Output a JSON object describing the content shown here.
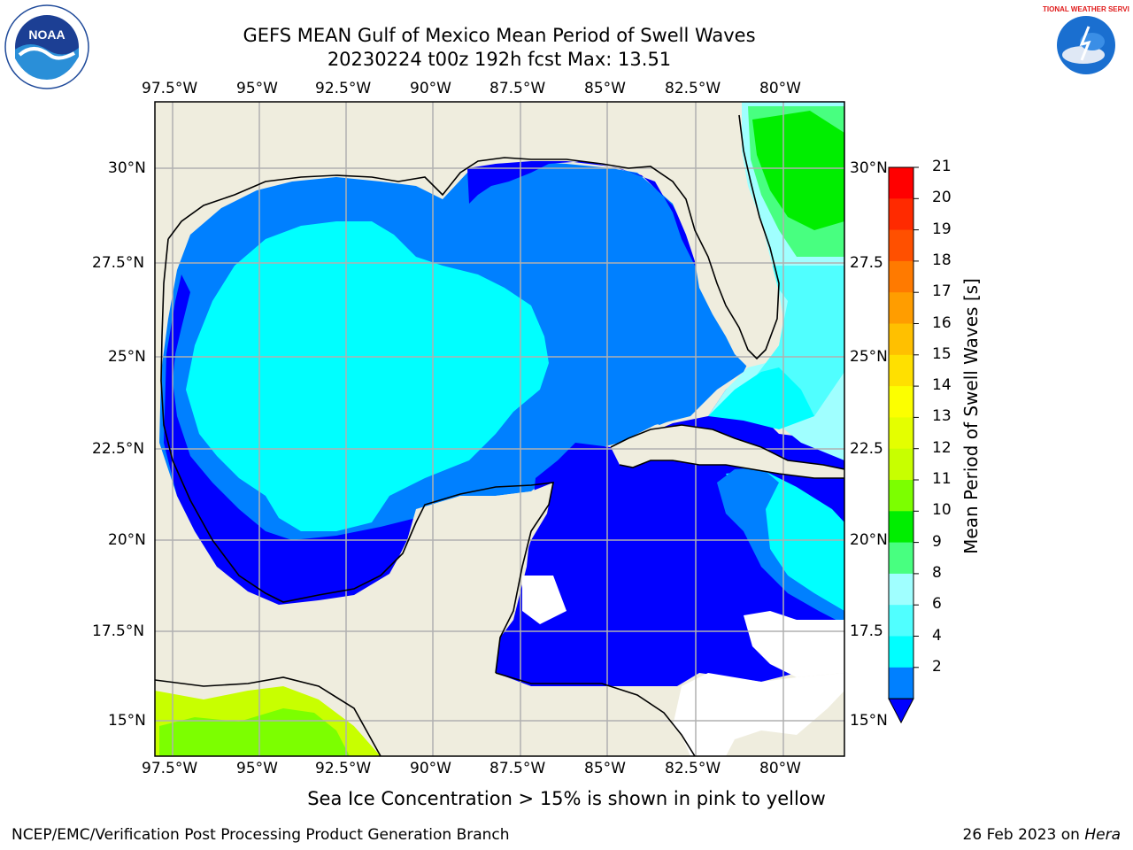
{
  "title": {
    "line1": "GEFS MEAN Gulf of Mexico Mean Period of Swell Waves",
    "line2": "20230224 t00z 192h fcst   Max: 13.51"
  },
  "map": {
    "lon_labels": [
      "97.5°W",
      "95°W",
      "92.5°W",
      "90°W",
      "87.5°W",
      "85°W",
      "82.5°W",
      "80°W"
    ],
    "lat_labels_left": [
      "30°N",
      "27.5°N",
      "25°N",
      "22.5°N",
      "20°N",
      "17.5°N",
      "15°N"
    ],
    "lat_labels_right": [
      "30°N",
      "27.5",
      "25°N",
      "22.5",
      "20°N",
      "17.5",
      "15°N"
    ],
    "land_color": "#efedde",
    "grid_color": "#b0b0b0"
  },
  "colorbar": {
    "title": "Mean Period of Swell Waves [s]",
    "ticks": [
      "21",
      "20",
      "19",
      "18",
      "17",
      "16",
      "15",
      "14",
      "13",
      "12",
      "11",
      "10",
      "9",
      "8",
      "6",
      "4",
      "2"
    ],
    "colors": [
      "#ff0000",
      "#ff2a00",
      "#ff5000",
      "#ff7a00",
      "#ff9d00",
      "#ffc000",
      "#ffe000",
      "#fcff00",
      "#e4ff00",
      "#c8ff00",
      "#7cff00",
      "#00ee00",
      "#48ff80",
      "#a0ffff",
      "#50ffff",
      "#00ffff",
      "#0080ff"
    ],
    "underflow_color": "#0000ff"
  },
  "note": "Sea Ice Concentration > 15% is shown in pink to yellow",
  "footer": {
    "left": "NCEP/EMC/Verification Post Processing Product Generation Branch",
    "right_date": "26 Feb 2023 on ",
    "right_host": "Hera"
  },
  "logos": {
    "left": "NOAA",
    "right": "NATIONAL WEATHER SERVICE"
  }
}
